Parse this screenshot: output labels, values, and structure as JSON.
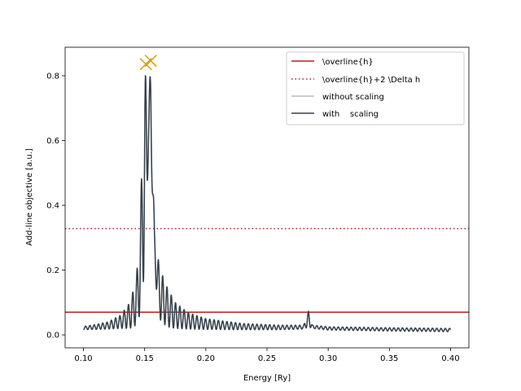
{
  "chart_data": {
    "type": "line",
    "xlabel": "Energy [Ry]",
    "ylabel": "Add-line objective [a.u.]",
    "xlim": [
      0.085,
      0.415
    ],
    "ylim": [
      -0.04,
      0.888
    ],
    "xticks": [
      0.1,
      0.15,
      0.2,
      0.25,
      0.3,
      0.35,
      0.4
    ],
    "xtick_labels": [
      "0.10",
      "0.15",
      "0.20",
      "0.25",
      "0.30",
      "0.35",
      "0.40"
    ],
    "yticks": [
      0.0,
      0.2,
      0.4,
      0.6,
      0.8
    ],
    "ytick_labels": [
      "0.0",
      "0.2",
      "0.4",
      "0.6",
      "0.8"
    ],
    "grid": false,
    "legend_position": "top-right",
    "hlines": [
      {
        "name": "\\overline{h}",
        "y": 0.07,
        "color": "#b22222",
        "style": "solid"
      },
      {
        "name": "\\overline{h}+2 \\Delta h",
        "y": 0.328,
        "color": "#b22222",
        "style": "dotted"
      }
    ],
    "series": [
      {
        "name": "without scaling",
        "color": "#bbbbbb",
        "x_range": [
          0.1,
          0.4
        ],
        "oscillation_period": 0.0035,
        "envelope": [
          [
            0.1,
            0.016,
            0.026
          ],
          [
            0.11,
            0.017,
            0.032
          ],
          [
            0.12,
            0.018,
            0.04
          ],
          [
            0.13,
            0.02,
            0.06
          ],
          [
            0.138,
            0.02,
            0.1
          ],
          [
            0.143,
            0.03,
            0.17
          ],
          [
            0.146,
            0.06,
            0.3
          ],
          [
            0.15,
            0.2,
            0.835
          ],
          [
            0.153,
            0.55,
            0.7
          ],
          [
            0.155,
            0.6,
            0.845
          ],
          [
            0.158,
            0.2,
            0.32
          ],
          [
            0.162,
            0.05,
            0.21
          ],
          [
            0.168,
            0.025,
            0.15
          ],
          [
            0.175,
            0.02,
            0.1
          ],
          [
            0.185,
            0.018,
            0.07
          ],
          [
            0.2,
            0.017,
            0.05
          ],
          [
            0.23,
            0.016,
            0.035
          ],
          [
            0.26,
            0.016,
            0.03
          ],
          [
            0.28,
            0.018,
            0.03
          ],
          [
            0.284,
            0.025,
            0.075
          ],
          [
            0.287,
            0.02,
            0.03
          ],
          [
            0.3,
            0.015,
            0.025
          ],
          [
            0.35,
            0.012,
            0.022
          ],
          [
            0.4,
            0.01,
            0.02
          ]
        ]
      },
      {
        "name": "with    scaling",
        "color": "#36414b",
        "x_range": [
          0.1,
          0.4
        ],
        "oscillation_period": 0.0035,
        "envelope": [
          [
            0.1,
            0.016,
            0.026
          ],
          [
            0.11,
            0.017,
            0.032
          ],
          [
            0.12,
            0.018,
            0.04
          ],
          [
            0.13,
            0.02,
            0.06
          ],
          [
            0.138,
            0.02,
            0.1
          ],
          [
            0.143,
            0.03,
            0.17
          ],
          [
            0.146,
            0.06,
            0.3
          ],
          [
            0.15,
            0.2,
            0.835
          ],
          [
            0.153,
            0.55,
            0.7
          ],
          [
            0.155,
            0.6,
            0.845
          ],
          [
            0.158,
            0.2,
            0.32
          ],
          [
            0.162,
            0.05,
            0.21
          ],
          [
            0.168,
            0.025,
            0.15
          ],
          [
            0.175,
            0.02,
            0.1
          ],
          [
            0.185,
            0.018,
            0.07
          ],
          [
            0.2,
            0.017,
            0.05
          ],
          [
            0.23,
            0.016,
            0.035
          ],
          [
            0.26,
            0.016,
            0.03
          ],
          [
            0.28,
            0.018,
            0.03
          ],
          [
            0.284,
            0.025,
            0.075
          ],
          [
            0.287,
            0.02,
            0.03
          ],
          [
            0.3,
            0.015,
            0.025
          ],
          [
            0.35,
            0.012,
            0.022
          ],
          [
            0.4,
            0.01,
            0.02
          ]
        ]
      }
    ],
    "markers": [
      {
        "symbol": "x",
        "x": 0.151,
        "y": 0.836,
        "color": "#d4a21a"
      },
      {
        "symbol": "x",
        "x": 0.155,
        "y": 0.846,
        "color": "#d4a21a"
      }
    ]
  },
  "legend": [
    {
      "label": "\\overline{h}",
      "color": "#b22222",
      "style": "solid"
    },
    {
      "label": "\\overline{h}+2 \\Delta h",
      "color": "#b22222",
      "style": "dotted"
    },
    {
      "label": "without scaling",
      "color": "#bbbbbb",
      "style": "solid"
    },
    {
      "label": "with    scaling",
      "color": "#36414b",
      "style": "solid"
    }
  ]
}
